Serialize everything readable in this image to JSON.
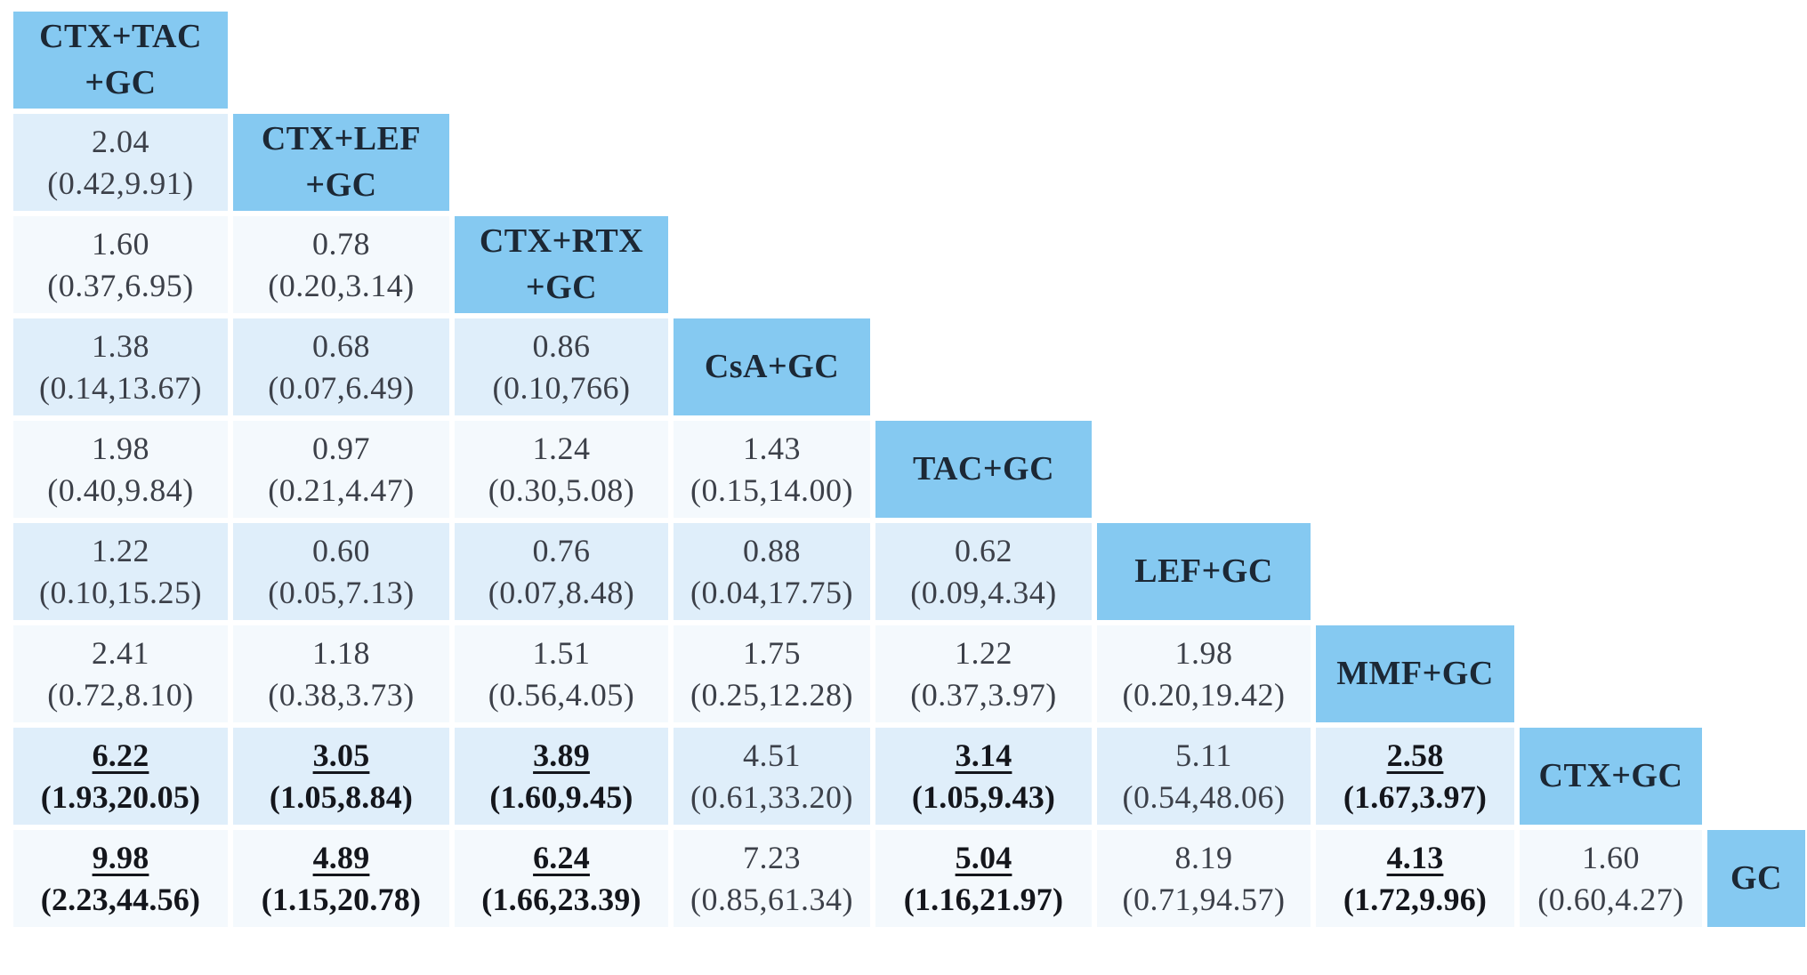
{
  "colors": {
    "diagonal_bg": "#85C9F1",
    "row_shaded_bg": "#DFEEFA",
    "row_light_bg": "#F4F9FD",
    "value_text": "#3C4049",
    "significant_text": "#14161C",
    "treatment_text": "#1C2835"
  },
  "chart_data": {
    "type": "table",
    "layout": "lower-triangular league table, treatments on diagonal, estimate over confidence interval in each cell",
    "treatments": [
      "CTX+TAC+GC",
      "CTX+LEF+GC",
      "CTX+RTX+GC",
      "CsA+GC",
      "TAC+GC",
      "LEF+GC",
      "MMF+GC",
      "CTX+GC",
      "GC"
    ],
    "rows": [
      {
        "treatment": "CTX+TAC+GC",
        "diagonal_lines": [
          "CTX+TAC",
          "+GC"
        ],
        "cells": []
      },
      {
        "treatment": "CTX+LEF+GC",
        "diagonal_lines": [
          "CTX+LEF",
          "+GC"
        ],
        "cells": [
          {
            "est": "2.04",
            "ci": "(0.42,9.91)",
            "sig": false
          }
        ]
      },
      {
        "treatment": "CTX+RTX+GC",
        "diagonal_lines": [
          "CTX+RTX",
          "+GC"
        ],
        "cells": [
          {
            "est": "1.60",
            "ci": "(0.37,6.95)",
            "sig": false
          },
          {
            "est": "0.78",
            "ci": "(0.20,3.14)",
            "sig": false
          }
        ]
      },
      {
        "treatment": "CsA+GC",
        "diagonal_lines": [
          "CsA+GC"
        ],
        "cells": [
          {
            "est": "1.38",
            "ci": "(0.14,13.67)",
            "sig": false
          },
          {
            "est": "0.68",
            "ci": "(0.07,6.49)",
            "sig": false
          },
          {
            "est": "0.86",
            "ci": "(0.10,766)",
            "sig": false
          }
        ]
      },
      {
        "treatment": "TAC+GC",
        "diagonal_lines": [
          "TAC+GC"
        ],
        "cells": [
          {
            "est": "1.98",
            "ci": "(0.40,9.84)",
            "sig": false
          },
          {
            "est": "0.97",
            "ci": "(0.21,4.47)",
            "sig": false
          },
          {
            "est": "1.24",
            "ci": "(0.30,5.08)",
            "sig": false
          },
          {
            "est": "1.43",
            "ci": "(0.15,14.00)",
            "sig": false
          }
        ]
      },
      {
        "treatment": "LEF+GC",
        "diagonal_lines": [
          "LEF+GC"
        ],
        "cells": [
          {
            "est": "1.22",
            "ci": "(0.10,15.25)",
            "sig": false
          },
          {
            "est": "0.60",
            "ci": "(0.05,7.13)",
            "sig": false
          },
          {
            "est": "0.76",
            "ci": "(0.07,8.48)",
            "sig": false
          },
          {
            "est": "0.88",
            "ci": "(0.04,17.75)",
            "sig": false
          },
          {
            "est": "0.62",
            "ci": "(0.09,4.34)",
            "sig": false
          }
        ]
      },
      {
        "treatment": "MMF+GC",
        "diagonal_lines": [
          "MMF+GC"
        ],
        "cells": [
          {
            "est": "2.41",
            "ci": "(0.72,8.10)",
            "sig": false
          },
          {
            "est": "1.18",
            "ci": "(0.38,3.73)",
            "sig": false
          },
          {
            "est": "1.51",
            "ci": "(0.56,4.05)",
            "sig": false
          },
          {
            "est": "1.75",
            "ci": "(0.25,12.28)",
            "sig": false
          },
          {
            "est": "1.22",
            "ci": "(0.37,3.97)",
            "sig": false
          },
          {
            "est": "1.98",
            "ci": "(0.20,19.42)",
            "sig": false
          }
        ]
      },
      {
        "treatment": "CTX+GC",
        "diagonal_lines": [
          "CTX+GC"
        ],
        "cells": [
          {
            "est": "6.22",
            "ci": "(1.93,20.05)",
            "sig": true
          },
          {
            "est": "3.05",
            "ci": "(1.05,8.84)",
            "sig": true
          },
          {
            "est": "3.89",
            "ci": "(1.60,9.45)",
            "sig": true
          },
          {
            "est": "4.51",
            "ci": "(0.61,33.20)",
            "sig": false
          },
          {
            "est": "3.14",
            "ci": "(1.05,9.43)",
            "sig": true
          },
          {
            "est": "5.11",
            "ci": "(0.54,48.06)",
            "sig": false
          },
          {
            "est": "2.58",
            "ci": "(1.67,3.97)",
            "sig": true
          }
        ]
      },
      {
        "treatment": "GC",
        "diagonal_lines": [
          "GC"
        ],
        "cells": [
          {
            "est": "9.98",
            "ci": "(2.23,44.56)",
            "sig": true
          },
          {
            "est": "4.89",
            "ci": "(1.15,20.78)",
            "sig": true
          },
          {
            "est": "6.24",
            "ci": "(1.66,23.39)",
            "sig": true
          },
          {
            "est": "7.23",
            "ci": "(0.85,61.34)",
            "sig": false
          },
          {
            "est": "5.04",
            "ci": "(1.16,21.97)",
            "sig": true
          },
          {
            "est": "8.19",
            "ci": "(0.71,94.57)",
            "sig": false
          },
          {
            "est": "4.13",
            "ci": "(1.72,9.96)",
            "sig": true
          },
          {
            "est": "1.60",
            "ci": "(0.60,4.27)",
            "sig": false
          }
        ]
      }
    ]
  }
}
